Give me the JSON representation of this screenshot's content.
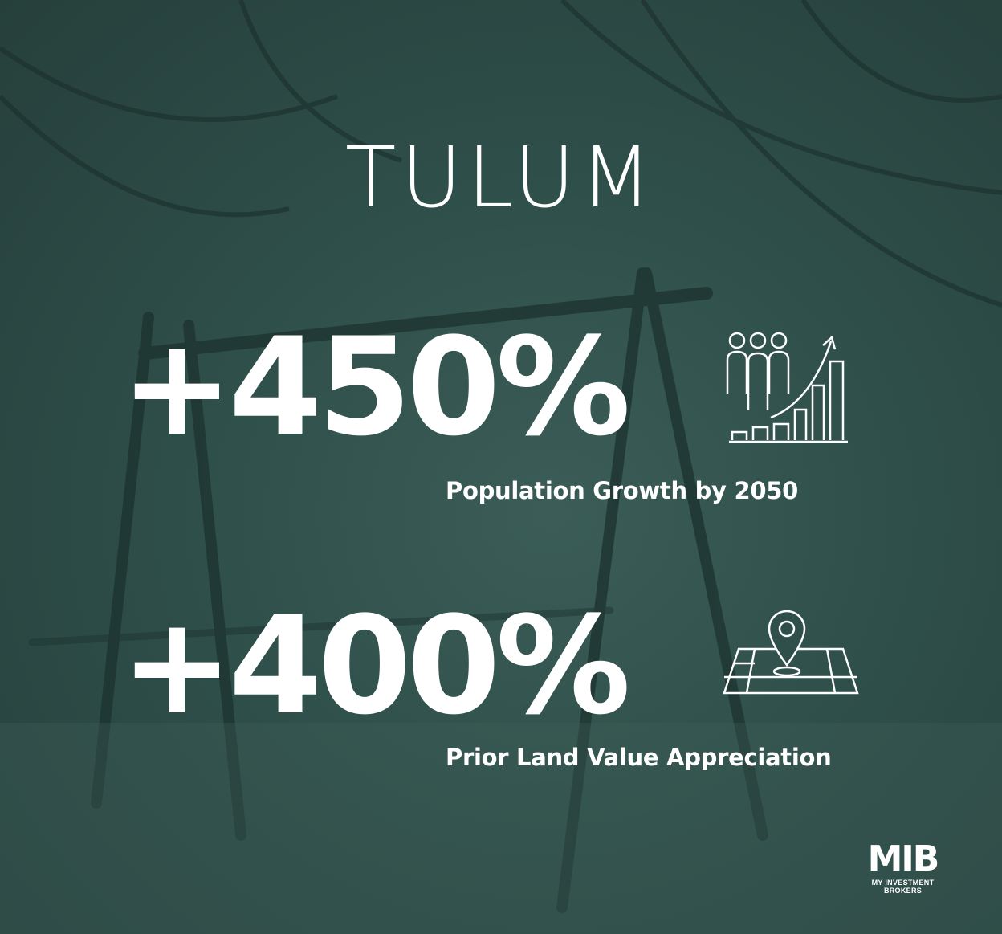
{
  "title": "TULUM",
  "stats": [
    {
      "value": "+450%",
      "label": "Population Growth by 2050",
      "icon": "population-growth-chart-icon"
    },
    {
      "value": "+400%",
      "label": "Prior Land Value Appreciation",
      "icon": "map-location-pin-icon"
    }
  ],
  "logo": {
    "mark": "MIB",
    "name": "MY INVESTMENT BROKERS"
  },
  "colors": {
    "overlay": "#2f4f4a",
    "text": "#ffffff"
  }
}
